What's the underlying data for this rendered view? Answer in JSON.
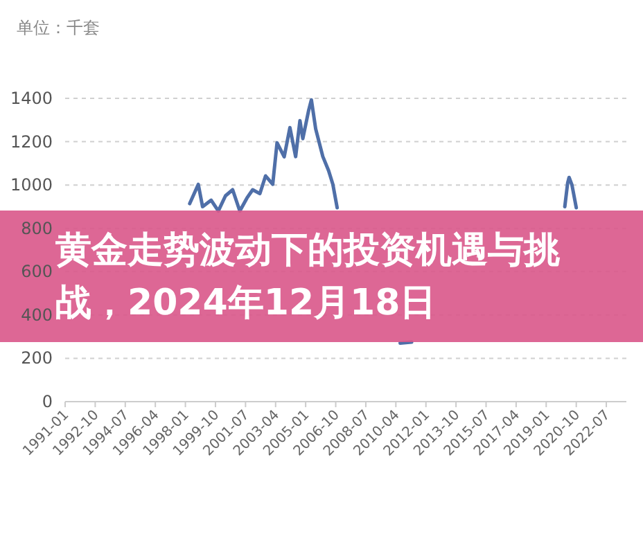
{
  "chart_data": {
    "type": "line",
    "title": "黄金走势波动下的投资机遇与挑战，2024年12月18日",
    "ylabel": "单位：千套",
    "series": [
      {
        "color": "#4f6fa8",
        "x": [
          "1998-04",
          "1998-10",
          "1999-01",
          "1999-07",
          "1999-12",
          "2000-05",
          "2000-10",
          "2001-03",
          "2001-08",
          "2001-12",
          "2002-05",
          "2002-09",
          "2003-02",
          "2003-05",
          "2003-10",
          "2004-02",
          "2004-06",
          "2004-09",
          "2004-11",
          "2005-03",
          "2005-05",
          "2005-08",
          "2006-01",
          "2006-05",
          "2006-08",
          "2006-11"
        ],
        "values": [
          914,
          1003,
          900,
          930,
          880,
          950,
          978,
          880,
          940,
          978,
          960,
          1042,
          1003,
          1195,
          1130,
          1265,
          1131,
          1297,
          1214,
          1342,
          1393,
          1259,
          1131,
          1067,
          1003,
          895
        ]
      },
      {
        "color": "#4f6fa8",
        "x": [
          "2010-07",
          "2011-03"
        ],
        "values": [
          270,
          275
        ]
      },
      {
        "color": "#4f6fa8",
        "x": [
          "2020-02",
          "2020-04",
          "2020-05",
          "2020-07",
          "2020-09",
          "2020-10"
        ],
        "values": [
          900,
          1010,
          1035,
          1000,
          930,
          895
        ]
      }
    ],
    "xlim": [
      "1991-01",
      "2023-09"
    ],
    "xticks": [
      "1991-01",
      "1992-10",
      "1994-07",
      "1996-04",
      "1998-01",
      "1999-10",
      "2001-07",
      "2003-04",
      "2005-01",
      "2006-10",
      "2008-07",
      "2010-04",
      "2012-01",
      "2013-10",
      "2015-07",
      "2017-04",
      "2019-01",
      "2020-10",
      "2022-07"
    ],
    "ylim": [
      0,
      1400
    ],
    "yticks": [
      0,
      200,
      400,
      600,
      800,
      1000,
      1200,
      1400
    ],
    "grid": "y",
    "marker": "none",
    "line_style": "solid"
  }
}
